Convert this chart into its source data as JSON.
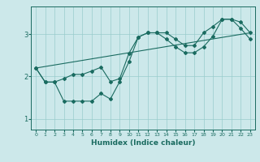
{
  "xlabel": "Humidex (Indice chaleur)",
  "ylabel": "",
  "bg_color": "#cce8ea",
  "line_color": "#1a6b60",
  "grid_color": "#99cccc",
  "xlim": [
    -0.5,
    23.5
  ],
  "ylim": [
    0.75,
    3.65
  ],
  "yticks": [
    1,
    2,
    3
  ],
  "xticks": [
    0,
    1,
    2,
    3,
    4,
    5,
    6,
    7,
    8,
    9,
    10,
    11,
    12,
    13,
    14,
    15,
    16,
    17,
    18,
    19,
    20,
    21,
    22,
    23
  ],
  "line1_x": [
    0,
    1,
    2,
    3,
    4,
    5,
    6,
    7,
    8,
    9,
    10,
    11,
    12,
    13,
    14,
    15,
    16,
    17,
    18,
    19,
    20,
    21,
    22,
    23
  ],
  "line1_y": [
    2.2,
    1.87,
    1.87,
    1.95,
    2.05,
    2.05,
    2.13,
    2.22,
    1.88,
    1.95,
    2.55,
    2.93,
    3.03,
    3.03,
    3.03,
    2.88,
    2.73,
    2.73,
    3.03,
    3.18,
    3.35,
    3.35,
    3.28,
    3.03
  ],
  "line2_x": [
    0,
    1,
    2,
    3,
    4,
    5,
    6,
    7,
    8,
    9,
    10,
    11,
    12,
    13,
    14,
    15,
    16,
    17,
    18,
    19,
    20,
    21,
    22,
    23
  ],
  "line2_y": [
    2.2,
    1.87,
    1.87,
    1.42,
    1.42,
    1.42,
    1.42,
    1.6,
    1.47,
    1.88,
    2.35,
    2.93,
    3.03,
    3.03,
    2.88,
    2.7,
    2.56,
    2.56,
    2.7,
    2.95,
    3.35,
    3.35,
    3.13,
    2.88
  ],
  "line3_x": [
    0,
    23
  ],
  "line3_y": [
    2.2,
    3.03
  ]
}
